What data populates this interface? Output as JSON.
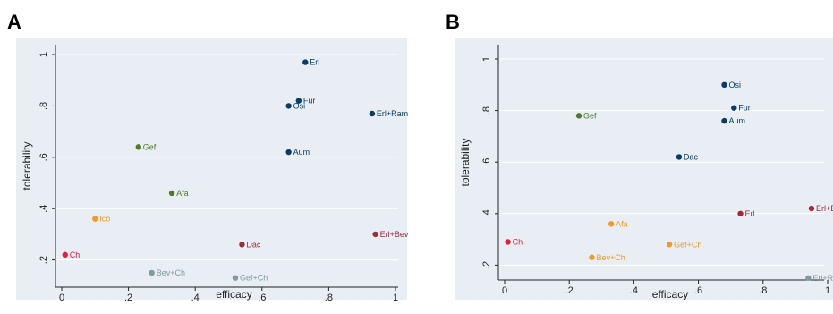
{
  "panels": [
    {
      "letter": "A"
    },
    {
      "letter": "B"
    }
  ],
  "colors": {
    "plot_bg": "#e8eef4",
    "gridline": "#ffffff",
    "navy": "#0b3b66",
    "dark_red": "#9e2a3a",
    "green": "#4f7a2a",
    "orange": "#f39a2a",
    "crimson": "#e02040",
    "gray_teal": "#7f9c98"
  },
  "chart_data": [
    {
      "type": "scatter",
      "panel": "A",
      "xlabel": "efficacy",
      "ylabel": "tolerability",
      "xlim": [
        0,
        1
      ],
      "ylim": [
        0.1,
        1.02
      ],
      "x_ticks": [
        "0",
        ".2",
        ".4",
        ".6",
        ".8",
        "1"
      ],
      "y_ticks": [
        "1",
        ".8",
        ".6",
        ".4",
        ".2"
      ],
      "points": [
        {
          "label": "Erl",
          "x": 0.73,
          "y": 0.97,
          "color": "#0b3b66"
        },
        {
          "label": "Fur",
          "x": 0.71,
          "y": 0.82,
          "color": "#0b3b66"
        },
        {
          "label": "Osi",
          "x": 0.68,
          "y": 0.8,
          "color": "#0b3b66"
        },
        {
          "label": "Erl+Ram",
          "x": 0.93,
          "y": 0.77,
          "color": "#0b3b66"
        },
        {
          "label": "Gef",
          "x": 0.23,
          "y": 0.64,
          "color": "#4f7a2a"
        },
        {
          "label": "Aum",
          "x": 0.68,
          "y": 0.62,
          "color": "#0b3b66"
        },
        {
          "label": "Afa",
          "x": 0.33,
          "y": 0.46,
          "color": "#4f7a2a"
        },
        {
          "label": "Ico",
          "x": 0.1,
          "y": 0.36,
          "color": "#f39a2a"
        },
        {
          "label": "Erl+Bev",
          "x": 0.94,
          "y": 0.3,
          "color": "#9e2a3a"
        },
        {
          "label": "Dac",
          "x": 0.54,
          "y": 0.26,
          "color": "#9e2a3a"
        },
        {
          "label": "Ch",
          "x": 0.01,
          "y": 0.22,
          "color": "#e02040"
        },
        {
          "label": "Bev+Ch",
          "x": 0.27,
          "y": 0.15,
          "color": "#7f9c98"
        },
        {
          "label": "Gef+Ch",
          "x": 0.52,
          "y": 0.13,
          "color": "#7f9c98"
        }
      ]
    },
    {
      "type": "scatter",
      "panel": "B",
      "xlabel": "efficacy",
      "ylabel": "tolerability",
      "xlim": [
        0,
        1
      ],
      "ylim": [
        0.15,
        1.01
      ],
      "x_ticks": [
        "0",
        ".2",
        ".4",
        ".6",
        ".8",
        "1"
      ],
      "y_ticks": [
        "1",
        ".8",
        ".6",
        ".4",
        ".2"
      ],
      "points": [
        {
          "label": "Osi",
          "x": 0.68,
          "y": 0.9,
          "color": "#0b3b66"
        },
        {
          "label": "Fur",
          "x": 0.71,
          "y": 0.81,
          "color": "#0b3b66"
        },
        {
          "label": "Gef",
          "x": 0.23,
          "y": 0.78,
          "color": "#4f7a2a"
        },
        {
          "label": "Aum",
          "x": 0.68,
          "y": 0.76,
          "color": "#0b3b66"
        },
        {
          "label": "Dac",
          "x": 0.54,
          "y": 0.62,
          "color": "#0b3b66"
        },
        {
          "label": "Erl+Bev",
          "x": 0.95,
          "y": 0.42,
          "color": "#9e2a3a"
        },
        {
          "label": "Erl",
          "x": 0.73,
          "y": 0.4,
          "color": "#9e2a3a"
        },
        {
          "label": "Afa",
          "x": 0.33,
          "y": 0.36,
          "color": "#f39a2a"
        },
        {
          "label": "Ch",
          "x": 0.01,
          "y": 0.29,
          "color": "#e02040"
        },
        {
          "label": "Gef+Ch",
          "x": 0.51,
          "y": 0.28,
          "color": "#f39a2a"
        },
        {
          "label": "Bev+Ch",
          "x": 0.27,
          "y": 0.23,
          "color": "#f39a2a"
        },
        {
          "label": "Erl+Ram",
          "x": 0.94,
          "y": 0.15,
          "color": "#7f9c98"
        }
      ]
    }
  ]
}
